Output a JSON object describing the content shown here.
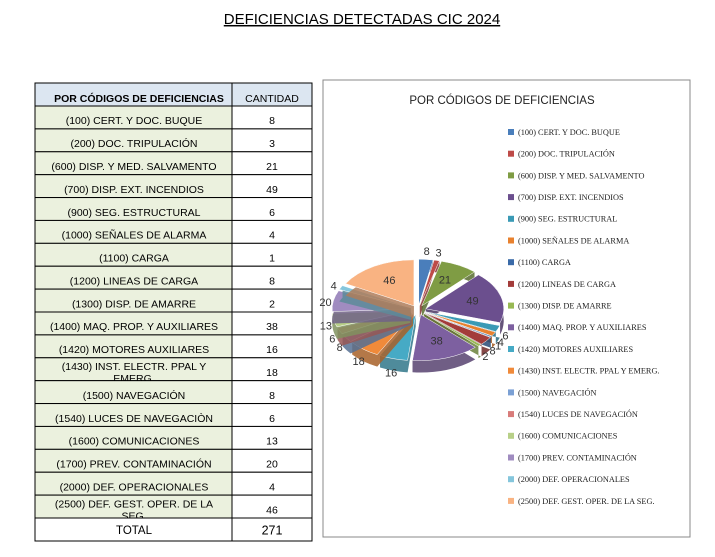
{
  "title": "DEFICIENCIAS DETECTADAS CIC 2024",
  "table": {
    "header": [
      "POR CÓDIGOS DE DEFICIENCIAS",
      "CANTIDAD"
    ],
    "rows": [
      [
        "(100) CERT. Y DOC. BUQUE",
        8
      ],
      [
        "(200) DOC. TRIPULACIÓN",
        3
      ],
      [
        "(600) DISP. Y MED.  SALVAMENTO",
        21
      ],
      [
        "(700) DISP. EXT. INCENDIOS",
        49
      ],
      [
        "(900) SEG. ESTRUCTURAL",
        6
      ],
      [
        "(1000) SEÑALES DE ALARMA",
        4
      ],
      [
        "(1100) CARGA",
        1
      ],
      [
        "(1200) LINEAS DE CARGA",
        8
      ],
      [
        "(1300) DISP. DE AMARRE",
        2
      ],
      [
        "(1400) MAQ. PROP. Y AUXILIARES",
        38
      ],
      [
        "(1420) MOTORES AUXILIARES",
        16
      ],
      [
        "(1430) INST. ELECTR. PPAL Y EMERG.",
        18
      ],
      [
        "(1500) NAVEGACIÓN",
        8
      ],
      [
        "(1540) LUCES DE NAVEGACIÒN",
        6
      ],
      [
        "(1600) COMUNICACIONES",
        13
      ],
      [
        "(1700) PREV. CONTAMINACIÓN",
        20
      ],
      [
        "(2000) DEF. OPERACIONALES",
        4
      ],
      [
        "(2500) DEF. GEST. OPER. DE LA SEG.",
        46
      ]
    ],
    "total": [
      "TOTAL",
      271
    ]
  },
  "chart_data": {
    "type": "pie",
    "title": "POR CÓDIGOS DE DEFICIENCIAS",
    "categories": [
      "(100) CERT. Y DOC. BUQUE",
      "(200) DOC. TRIPULACIÓN",
      "(600) DISP. Y MED.  SALVAMENTO",
      "(700) DISP. EXT. INCENDIOS",
      "(900) SEG. ESTRUCTURAL",
      "(1000) SEÑALES DE ALARMA",
      "(1100) CARGA",
      "(1200) LINEAS DE CARGA",
      "(1300) DISP. DE AMARRE",
      "(1400) MAQ. PROP. Y AUXILIARES",
      "(1420) MOTORES AUXILIARES",
      "(1430) INST. ELECTR. PPAL Y EMERG.",
      "(1500) NAVEGACIÓN",
      "(1540) LUCES DE NAVEGACIÓN",
      "(1600) COMUNICACIONES",
      "(1700) PREV. CONTAMINACIÓN",
      "(2000) DEF. OPERACIONALES",
      "(2500) DEF. GEST. OPER. DE LA SEG."
    ],
    "values": [
      8,
      3,
      21,
      49,
      6,
      4,
      1,
      8,
      2,
      38,
      16,
      18,
      8,
      6,
      13,
      20,
      4,
      46
    ],
    "colors": [
      "#4a7ebb",
      "#be4b48",
      "#7f9c44",
      "#6b4f8e",
      "#3a9ab5",
      "#e8812e",
      "#3a6aa8",
      "#a33c3a",
      "#98b954",
      "#7d60a0",
      "#46aac5",
      "#f08a3a",
      "#7ba0d4",
      "#d87c7a",
      "#b8d088",
      "#a08cc0",
      "#85c6dc",
      "#f9b382"
    ],
    "legend": "right"
  }
}
